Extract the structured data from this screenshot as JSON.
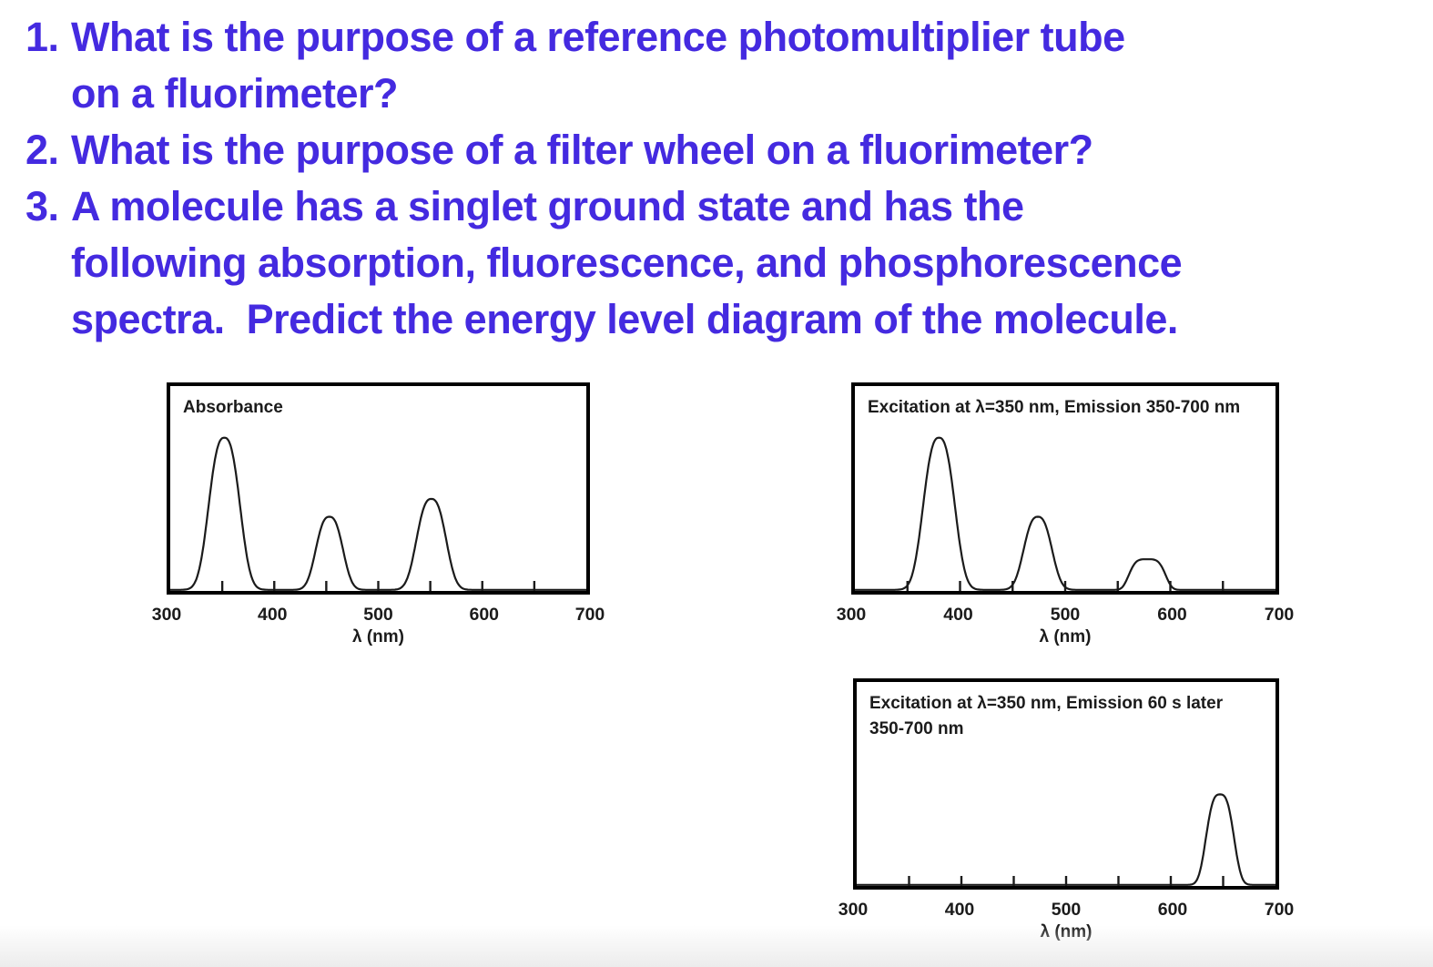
{
  "slide": {
    "text_color": "#442ae0",
    "questions": [
      {
        "number": "1.",
        "text": "What is the purpose of a reference photomultiplier tube\non a fluorimeter?"
      },
      {
        "number": "2.",
        "text": "What is the purpose of a filter wheel on a fluorimeter?"
      },
      {
        "number": "3.",
        "text": "A molecule has a singlet ground state and has the\nfollowing absorption, fluorescence, and phosphorescence\nspectra.  Predict the energy level diagram of the molecule."
      }
    ]
  },
  "chart_data": [
    {
      "type": "line",
      "title": "Absorbance",
      "xlabel": "λ (nm)",
      "xlim": [
        300,
        700
      ],
      "x_tick_labels": [
        300,
        400,
        500,
        600,
        700
      ],
      "x_minor_ticks": [
        350,
        400,
        450,
        500,
        550,
        600,
        650
      ],
      "grid": false,
      "line_color": "#1b1b1b",
      "y_units": "relative intensity (unlabeled axis, 0-1 of plot height)",
      "peaks": [
        {
          "center_nm": 352,
          "rel_height": 0.77,
          "width_nm": 18.5,
          "shape_exp": 2.6
        },
        {
          "center_nm": 453,
          "rel_height": 0.37,
          "width_nm": 16.0,
          "shape_exp": 2.6
        },
        {
          "center_nm": 551,
          "rel_height": 0.46,
          "width_nm": 17.5,
          "shape_exp": 2.6
        }
      ]
    },
    {
      "type": "line",
      "title": "Excitation at λ=350 nm, Emission 350-700 nm",
      "xlabel": "λ (nm)",
      "xlim": [
        300,
        700
      ],
      "x_tick_labels": [
        300,
        400,
        500,
        600,
        700
      ],
      "x_minor_ticks": [
        350,
        400,
        450,
        500,
        550,
        600,
        650
      ],
      "grid": false,
      "line_color": "#1b1b1b",
      "y_units": "relative intensity (unlabeled axis, 0-1 of plot height)",
      "peaks": [
        {
          "center_nm": 380,
          "rel_height": 0.77,
          "width_nm": 18.5,
          "shape_exp": 2.6
        },
        {
          "center_nm": 474,
          "rel_height": 0.37,
          "width_nm": 16.5,
          "shape_exp": 2.6
        },
        {
          "center_nm": 578,
          "rel_height": 0.155,
          "width_nm": 19.0,
          "shape_exp": 4
        }
      ]
    },
    {
      "type": "line",
      "title": "Excitation at λ=350 nm, Emission 60 s later\n350-700 nm",
      "xlabel": "λ (nm)",
      "xlim": [
        300,
        700
      ],
      "x_tick_labels": [
        300,
        400,
        500,
        600,
        700
      ],
      "x_minor_ticks": [
        350,
        400,
        450,
        500,
        550,
        600,
        650
      ],
      "grid": false,
      "line_color": "#1b1b1b",
      "y_units": "relative intensity (unlabeled axis, 0-1 of plot height)",
      "peaks": [
        {
          "center_nm": 647,
          "rel_height": 0.46,
          "width_nm": 15.5,
          "shape_exp": 3
        }
      ]
    }
  ]
}
